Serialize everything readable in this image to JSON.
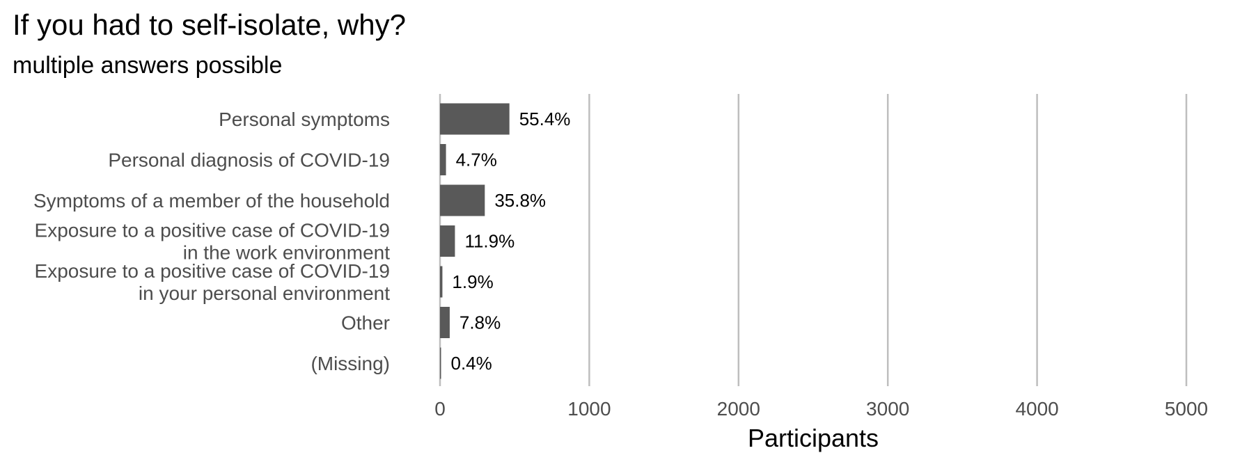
{
  "chart_data": {
    "type": "bar",
    "orientation": "horizontal",
    "title": "If you had to self-isolate, why?",
    "subtitle": "multiple answers possible",
    "xlabel": "Participants",
    "ylabel": "",
    "xlim": [
      0,
      5000
    ],
    "xticks": [
      0,
      1000,
      2000,
      3000,
      4000,
      5000
    ],
    "grid": "vertical",
    "categories": [
      [
        "Personal symptoms"
      ],
      [
        "Personal diagnosis of COVID-19"
      ],
      [
        "Symptoms of a member of the household"
      ],
      [
        "Exposure to a positive case of COVID-19",
        "in the work environment"
      ],
      [
        "Exposure to a positive case of COVID-19",
        "in your personal environment"
      ],
      [
        "Other"
      ],
      [
        "(Missing)"
      ]
    ],
    "values": [
      465,
      40,
      300,
      100,
      16,
      65,
      4
    ],
    "data_labels": [
      "55.4%",
      "4.7%",
      "35.8%",
      "11.9%",
      "1.9%",
      "7.8%",
      "0.4%"
    ],
    "colors": {
      "bar": "#595959",
      "grid": "#bebebe"
    }
  }
}
